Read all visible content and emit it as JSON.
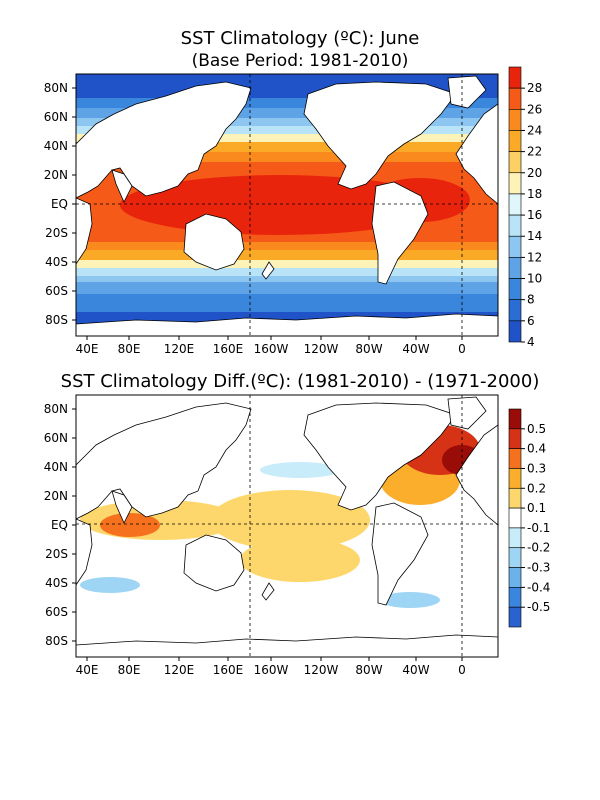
{
  "panel1": {
    "title": "SST Climatology (ºC): June",
    "subtitle": "(Base Period: 1981-2010)",
    "colorbar": {
      "labels": [
        "28",
        "26",
        "24",
        "22",
        "20",
        "18",
        "16",
        "14",
        "12",
        "10",
        "8",
        "6",
        "4"
      ],
      "colors": [
        "#e8250c",
        "#f55a19",
        "#fa8a1e",
        "#fbaa27",
        "#fdd064",
        "#fdf3b8",
        "#dff6fb",
        "#b9e4f7",
        "#8dc6f0",
        "#5ea3e6",
        "#3b86dd",
        "#2a6dd3",
        "#2052c8"
      ]
    }
  },
  "panel2": {
    "title": "SST Climatology Diff.(ºC): (1981-2010) - (1971-2000)",
    "colorbar": {
      "labels": [
        "0.5",
        "0.4",
        "0.3",
        "0.2",
        "0.1",
        "-0.1",
        "-0.2",
        "-0.3",
        "-0.4",
        "-0.5"
      ],
      "colors": [
        "#9a0c07",
        "#d63215",
        "#f5711d",
        "#fbae2c",
        "#fdd76c",
        "#ffffff",
        "#c8ecfa",
        "#9fd5f4",
        "#6cb2ea",
        "#3a86de",
        "#2a63cf"
      ]
    }
  },
  "axes": {
    "lat_labels": [
      "80N",
      "60N",
      "40N",
      "20N",
      "EQ",
      "20S",
      "40S",
      "60S",
      "80S"
    ],
    "lon_labels": [
      "40E",
      "80E",
      "120E",
      "160E",
      "160W",
      "120W",
      "80W",
      "40W",
      "0"
    ]
  },
  "colors": {
    "land": "#ffffff",
    "coast": "#000000",
    "frame": "#000000"
  }
}
